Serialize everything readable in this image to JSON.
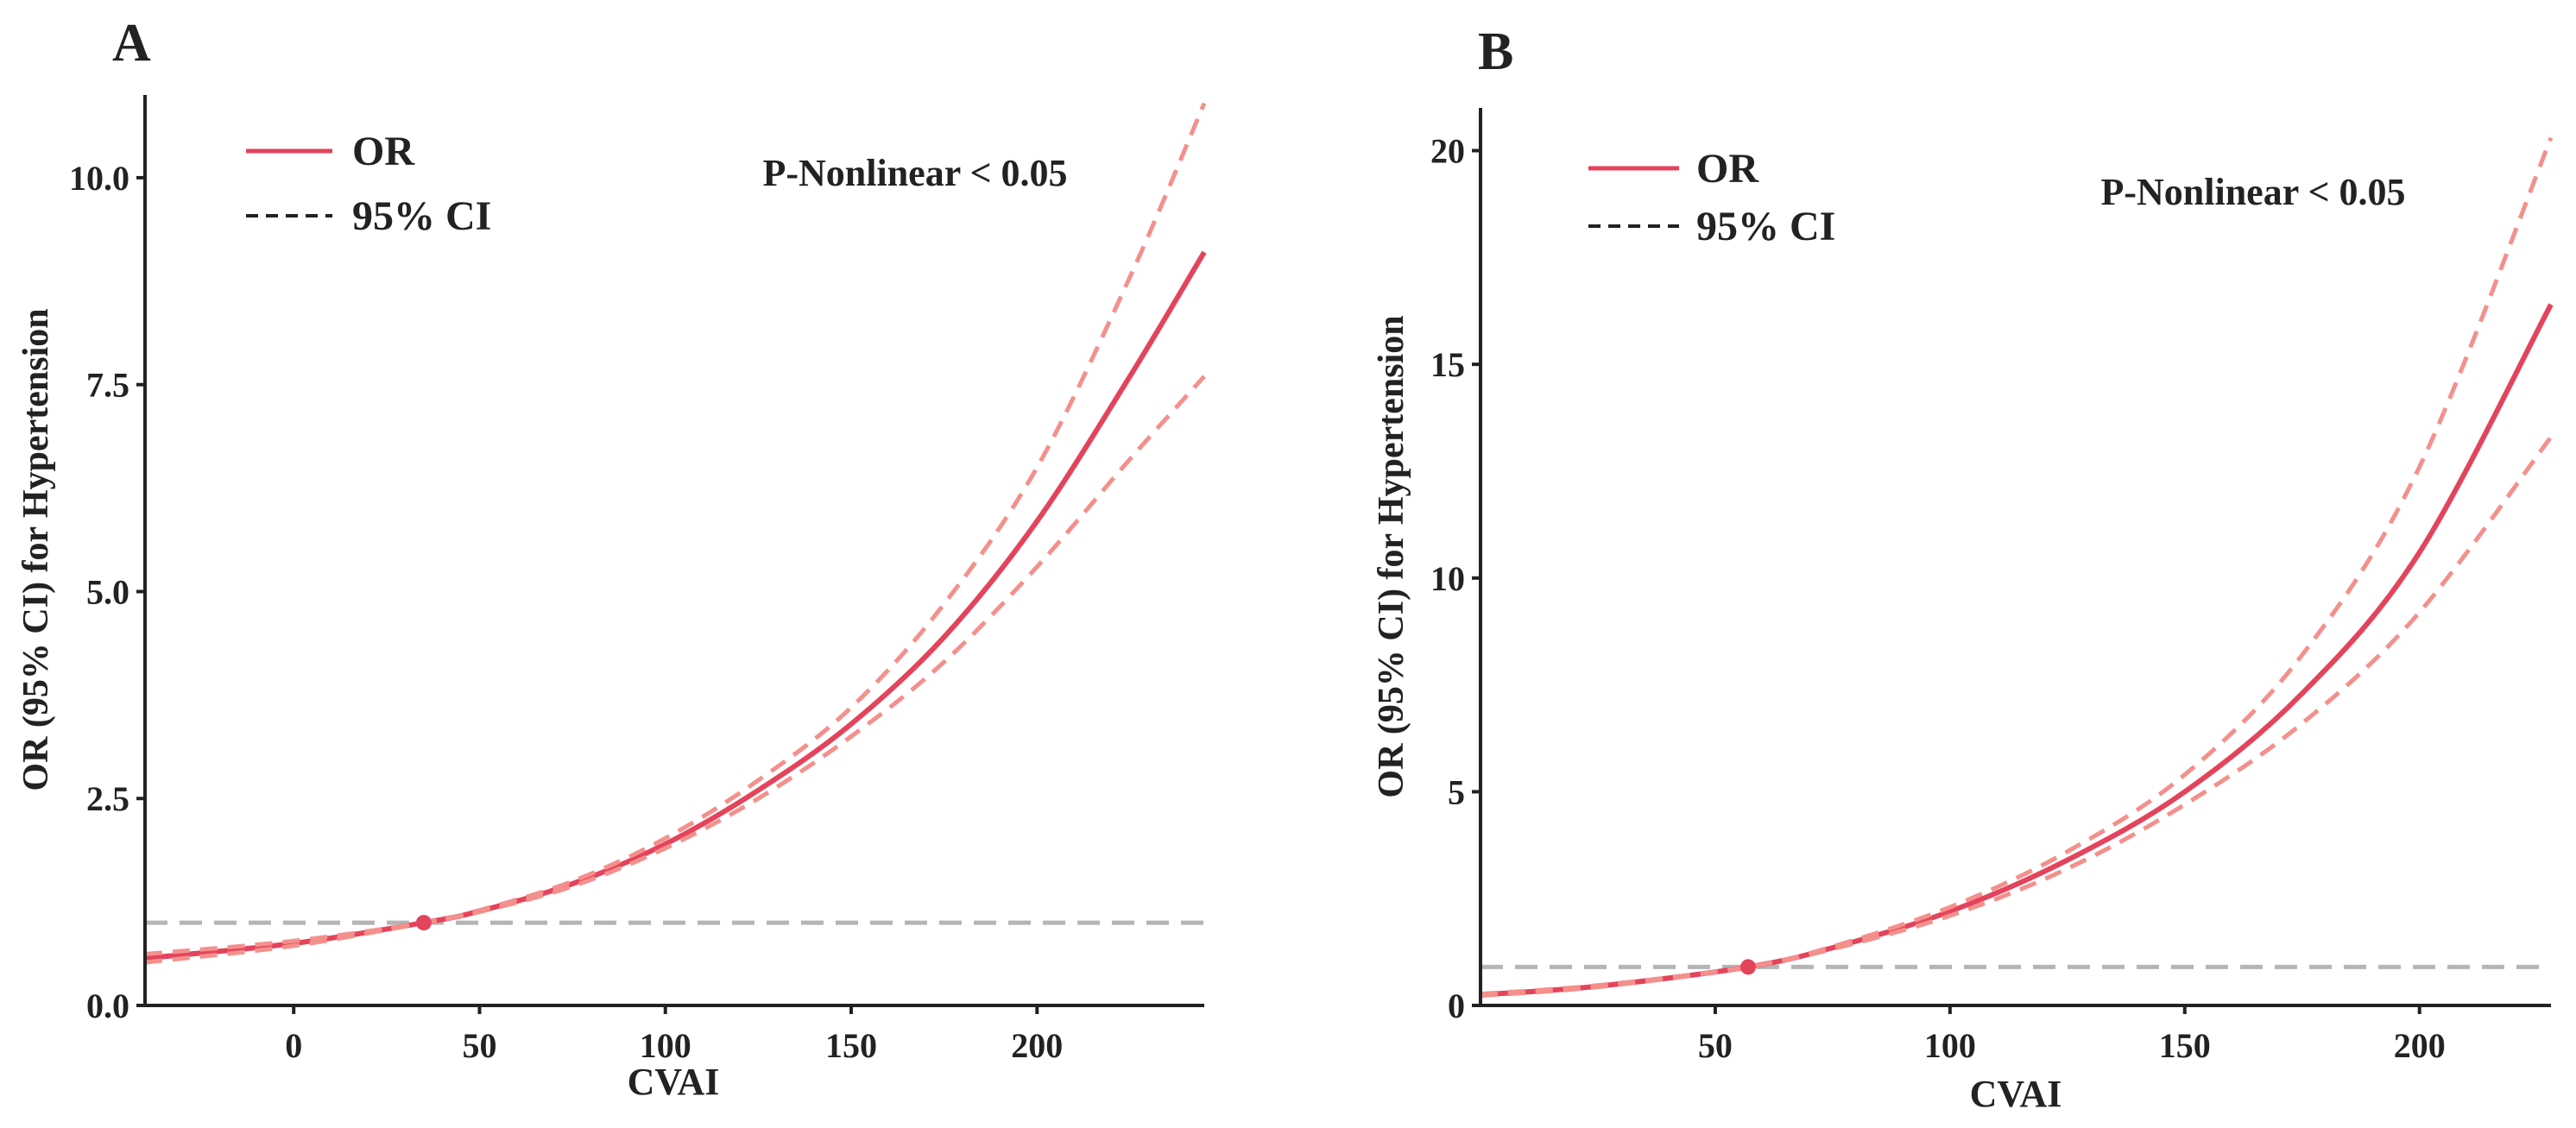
{
  "colors": {
    "or_line": "#e4435c",
    "ci_line": "#f4908c",
    "reference_line": "#b5b5b5",
    "axis": "#222222",
    "text": "#222222"
  },
  "chart_data": [
    {
      "panel": "A",
      "type": "line",
      "xlabel": "CVAI",
      "ylabel": "OR (95% CI) for Hypertension",
      "annotation": "P-Nonlinear < 0.05",
      "legend": {
        "placement": "top-left",
        "items": [
          {
            "label": "OR",
            "style": "solid"
          },
          {
            "label": "95% CI",
            "style": "dashed"
          }
        ]
      },
      "xlim": [
        -40,
        245
      ],
      "ylim": [
        0,
        11
      ],
      "xticks": [
        0,
        50,
        100,
        150,
        200
      ],
      "xtick_labels": [
        "0",
        "50",
        "100",
        "150",
        "200"
      ],
      "yticks": [
        0,
        2.5,
        5,
        7.5,
        10
      ],
      "ytick_labels": [
        "0.0",
        "2.5",
        "5.0",
        "7.5",
        "10.0"
      ],
      "reference_y": 1.0,
      "reference_point": {
        "x": 35,
        "y": 1.0
      },
      "series": [
        {
          "name": "OR",
          "x": [
            -40,
            0,
            35,
            50,
            75,
            100,
            125,
            150,
            175,
            200,
            225,
            245
          ],
          "values": [
            0.57,
            0.75,
            1.0,
            1.14,
            1.47,
            1.95,
            2.6,
            3.4,
            4.45,
            5.85,
            7.6,
            9.1
          ]
        },
        {
          "name": "95% CI upper",
          "x": [
            -40,
            0,
            35,
            50,
            75,
            100,
            125,
            150,
            175,
            200,
            225,
            245
          ],
          "values": [
            0.62,
            0.78,
            1.0,
            1.15,
            1.5,
            2.02,
            2.72,
            3.6,
            4.85,
            6.5,
            8.8,
            10.9
          ]
        },
        {
          "name": "95% CI lower",
          "x": [
            -40,
            0,
            35,
            50,
            75,
            100,
            125,
            150,
            175,
            200,
            225,
            245
          ],
          "values": [
            0.52,
            0.72,
            1.0,
            1.13,
            1.44,
            1.9,
            2.5,
            3.25,
            4.15,
            5.3,
            6.6,
            7.6
          ]
        }
      ]
    },
    {
      "panel": "B",
      "type": "line",
      "xlabel": "CVAI",
      "ylabel": "OR (95% CI) for Hypertension",
      "annotation": "P-Nonlinear < 0.05",
      "legend": {
        "placement": "top-left",
        "items": [
          {
            "label": "OR",
            "style": "solid"
          },
          {
            "label": "95% CI",
            "style": "dashed"
          }
        ]
      },
      "xlim": [
        0,
        228
      ],
      "ylim": [
        0,
        21
      ],
      "xticks": [
        50,
        100,
        150,
        200
      ],
      "xtick_labels": [
        "50",
        "100",
        "150",
        "200"
      ],
      "yticks": [
        0,
        5,
        10,
        15,
        20
      ],
      "ytick_labels": [
        "0",
        "5",
        "10",
        "15",
        "20"
      ],
      "reference_y": 0.9,
      "reference_point": {
        "x": 57,
        "y": 0.9
      },
      "series": [
        {
          "name": "OR",
          "x": [
            0,
            25,
            57,
            75,
            100,
            125,
            150,
            175,
            200,
            228
          ],
          "values": [
            0.25,
            0.45,
            0.9,
            1.35,
            2.2,
            3.4,
            5.0,
            7.3,
            10.6,
            16.4
          ]
        },
        {
          "name": "95% CI upper",
          "x": [
            0,
            25,
            57,
            75,
            100,
            125,
            150,
            175,
            200,
            228
          ],
          "values": [
            0.27,
            0.47,
            0.9,
            1.38,
            2.3,
            3.6,
            5.4,
            8.2,
            12.6,
            20.3
          ]
        },
        {
          "name": "95% CI lower",
          "x": [
            0,
            25,
            57,
            75,
            100,
            125,
            150,
            175,
            200,
            228
          ],
          "values": [
            0.23,
            0.43,
            0.9,
            1.32,
            2.1,
            3.2,
            4.7,
            6.6,
            9.2,
            13.3
          ]
        }
      ]
    }
  ]
}
